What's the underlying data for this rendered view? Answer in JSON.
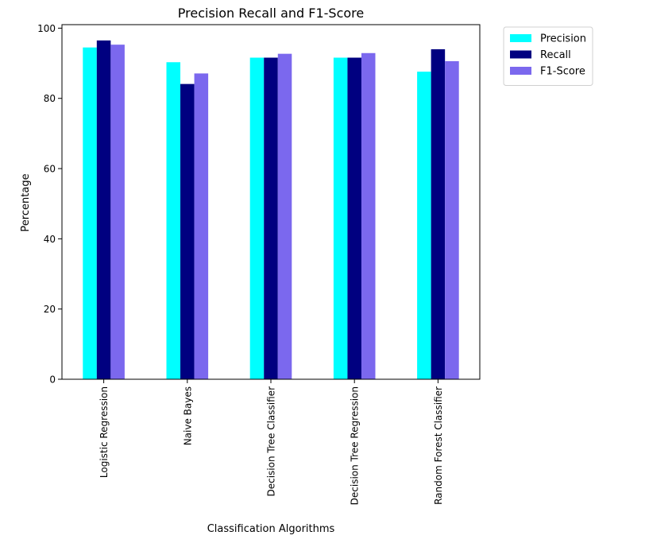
{
  "chart_data": {
    "type": "bar",
    "title": "Precision Recall and F1-Score",
    "xlabel": "Classification Algorithms",
    "ylabel": "Percentage",
    "categories": [
      "Logistic Regression",
      "Naive Bayes",
      "Decision Tree Classifier",
      "Decision Tree Regression",
      "Random Forest Classifier"
    ],
    "series": [
      {
        "name": "Precision",
        "color": "#00ffff",
        "values": [
          94.5,
          90.3,
          91.6,
          91.6,
          87.6
        ]
      },
      {
        "name": "Recall",
        "color": "#000080",
        "values": [
          96.5,
          84.1,
          91.6,
          91.6,
          94.0
        ]
      },
      {
        "name": "F1-Score",
        "color": "#7b68ee",
        "values": [
          95.3,
          87.1,
          92.7,
          92.9,
          90.6
        ]
      }
    ],
    "ylim": [
      0,
      101
    ],
    "yticks": [
      0,
      20,
      40,
      60,
      80,
      100
    ],
    "legend_position": "outside-top-right",
    "grid": false
  }
}
